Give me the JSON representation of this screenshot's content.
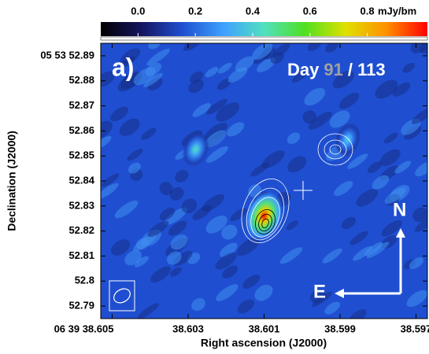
{
  "chart_data": {
    "type": "image",
    "panel_label": "a)",
    "title_parts": [
      {
        "text": "Day",
        "color": "#ffffff"
      },
      {
        "text": "91",
        "color": "#a0a0a0"
      },
      {
        "text": "/ 113",
        "color": "#ffffff"
      }
    ],
    "x_label": "Right ascension (J2000)",
    "y_label": "Declination (J2000)",
    "xlim": [
      38.6053,
      38.5967
    ],
    "ylim": [
      52.785,
      52.895
    ],
    "xticks": [
      {
        "value": 38.605,
        "label": "06 39 38.605"
      },
      38.603,
      38.601,
      38.599,
      38.597
    ],
    "yticks": [
      {
        "value": 52.89,
        "label": "05 53 52.89"
      },
      52.88,
      52.87,
      52.86,
      52.85,
      52.84,
      52.83,
      52.82,
      52.81,
      52.8,
      52.79
    ],
    "colorbar_unit": "mJy/bm",
    "clim": [
      -0.13,
      1.01
    ],
    "cticks": [
      {
        "value": 0,
        "label": "0.0"
      },
      0.2,
      0.4,
      0.6,
      0.8
    ],
    "colormap": [
      "#000000",
      "#151560",
      "#1f4fd0",
      "#3fa0ff",
      "#50e0c0",
      "#50e020",
      "#e0e000",
      "#ff9000",
      "#ff0000"
    ],
    "sources": [
      {
        "x": 38.601,
        "y": 52.826,
        "peak": 1.0
      },
      {
        "x": 38.6028,
        "y": 52.8526,
        "peak": 0.45
      },
      {
        "x": 38.5988,
        "y": 52.8565,
        "peak": 0.4
      }
    ],
    "compass": {
      "north": "N",
      "east": "E"
    }
  }
}
